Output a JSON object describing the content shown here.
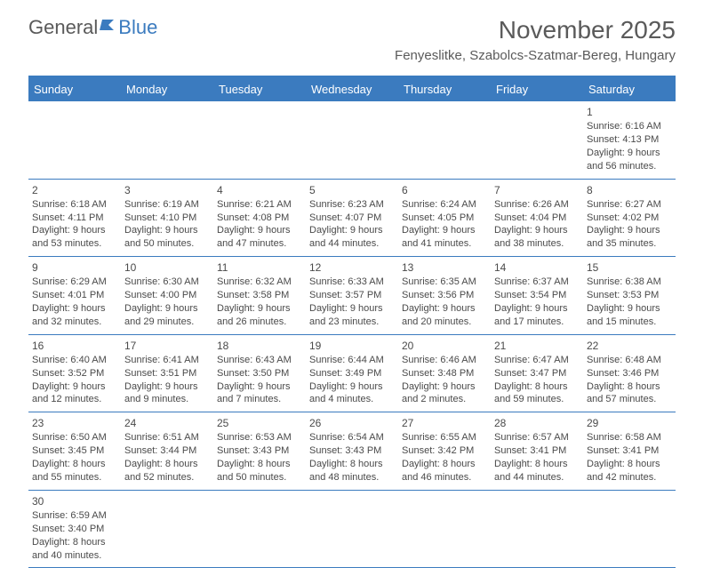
{
  "logo": {
    "text1": "General",
    "text2": "Blue"
  },
  "title": "November 2025",
  "location": "Fenyeslitke, Szabolcs-Szatmar-Bereg, Hungary",
  "colors": {
    "header_bg": "#3b7bbf",
    "header_text": "#ffffff",
    "body_text": "#4a4a4a",
    "title_text": "#5a5a5a",
    "border": "#3b7bbf",
    "background": "#ffffff"
  },
  "day_names": [
    "Sunday",
    "Monday",
    "Tuesday",
    "Wednesday",
    "Thursday",
    "Friday",
    "Saturday"
  ],
  "weeks": [
    [
      null,
      null,
      null,
      null,
      null,
      null,
      {
        "n": "1",
        "sr": "Sunrise: 6:16 AM",
        "ss": "Sunset: 4:13 PM",
        "d1": "Daylight: 9 hours",
        "d2": "and 56 minutes."
      }
    ],
    [
      {
        "n": "2",
        "sr": "Sunrise: 6:18 AM",
        "ss": "Sunset: 4:11 PM",
        "d1": "Daylight: 9 hours",
        "d2": "and 53 minutes."
      },
      {
        "n": "3",
        "sr": "Sunrise: 6:19 AM",
        "ss": "Sunset: 4:10 PM",
        "d1": "Daylight: 9 hours",
        "d2": "and 50 minutes."
      },
      {
        "n": "4",
        "sr": "Sunrise: 6:21 AM",
        "ss": "Sunset: 4:08 PM",
        "d1": "Daylight: 9 hours",
        "d2": "and 47 minutes."
      },
      {
        "n": "5",
        "sr": "Sunrise: 6:23 AM",
        "ss": "Sunset: 4:07 PM",
        "d1": "Daylight: 9 hours",
        "d2": "and 44 minutes."
      },
      {
        "n": "6",
        "sr": "Sunrise: 6:24 AM",
        "ss": "Sunset: 4:05 PM",
        "d1": "Daylight: 9 hours",
        "d2": "and 41 minutes."
      },
      {
        "n": "7",
        "sr": "Sunrise: 6:26 AM",
        "ss": "Sunset: 4:04 PM",
        "d1": "Daylight: 9 hours",
        "d2": "and 38 minutes."
      },
      {
        "n": "8",
        "sr": "Sunrise: 6:27 AM",
        "ss": "Sunset: 4:02 PM",
        "d1": "Daylight: 9 hours",
        "d2": "and 35 minutes."
      }
    ],
    [
      {
        "n": "9",
        "sr": "Sunrise: 6:29 AM",
        "ss": "Sunset: 4:01 PM",
        "d1": "Daylight: 9 hours",
        "d2": "and 32 minutes."
      },
      {
        "n": "10",
        "sr": "Sunrise: 6:30 AM",
        "ss": "Sunset: 4:00 PM",
        "d1": "Daylight: 9 hours",
        "d2": "and 29 minutes."
      },
      {
        "n": "11",
        "sr": "Sunrise: 6:32 AM",
        "ss": "Sunset: 3:58 PM",
        "d1": "Daylight: 9 hours",
        "d2": "and 26 minutes."
      },
      {
        "n": "12",
        "sr": "Sunrise: 6:33 AM",
        "ss": "Sunset: 3:57 PM",
        "d1": "Daylight: 9 hours",
        "d2": "and 23 minutes."
      },
      {
        "n": "13",
        "sr": "Sunrise: 6:35 AM",
        "ss": "Sunset: 3:56 PM",
        "d1": "Daylight: 9 hours",
        "d2": "and 20 minutes."
      },
      {
        "n": "14",
        "sr": "Sunrise: 6:37 AM",
        "ss": "Sunset: 3:54 PM",
        "d1": "Daylight: 9 hours",
        "d2": "and 17 minutes."
      },
      {
        "n": "15",
        "sr": "Sunrise: 6:38 AM",
        "ss": "Sunset: 3:53 PM",
        "d1": "Daylight: 9 hours",
        "d2": "and 15 minutes."
      }
    ],
    [
      {
        "n": "16",
        "sr": "Sunrise: 6:40 AM",
        "ss": "Sunset: 3:52 PM",
        "d1": "Daylight: 9 hours",
        "d2": "and 12 minutes."
      },
      {
        "n": "17",
        "sr": "Sunrise: 6:41 AM",
        "ss": "Sunset: 3:51 PM",
        "d1": "Daylight: 9 hours",
        "d2": "and 9 minutes."
      },
      {
        "n": "18",
        "sr": "Sunrise: 6:43 AM",
        "ss": "Sunset: 3:50 PM",
        "d1": "Daylight: 9 hours",
        "d2": "and 7 minutes."
      },
      {
        "n": "19",
        "sr": "Sunrise: 6:44 AM",
        "ss": "Sunset: 3:49 PM",
        "d1": "Daylight: 9 hours",
        "d2": "and 4 minutes."
      },
      {
        "n": "20",
        "sr": "Sunrise: 6:46 AM",
        "ss": "Sunset: 3:48 PM",
        "d1": "Daylight: 9 hours",
        "d2": "and 2 minutes."
      },
      {
        "n": "21",
        "sr": "Sunrise: 6:47 AM",
        "ss": "Sunset: 3:47 PM",
        "d1": "Daylight: 8 hours",
        "d2": "and 59 minutes."
      },
      {
        "n": "22",
        "sr": "Sunrise: 6:48 AM",
        "ss": "Sunset: 3:46 PM",
        "d1": "Daylight: 8 hours",
        "d2": "and 57 minutes."
      }
    ],
    [
      {
        "n": "23",
        "sr": "Sunrise: 6:50 AM",
        "ss": "Sunset: 3:45 PM",
        "d1": "Daylight: 8 hours",
        "d2": "and 55 minutes."
      },
      {
        "n": "24",
        "sr": "Sunrise: 6:51 AM",
        "ss": "Sunset: 3:44 PM",
        "d1": "Daylight: 8 hours",
        "d2": "and 52 minutes."
      },
      {
        "n": "25",
        "sr": "Sunrise: 6:53 AM",
        "ss": "Sunset: 3:43 PM",
        "d1": "Daylight: 8 hours",
        "d2": "and 50 minutes."
      },
      {
        "n": "26",
        "sr": "Sunrise: 6:54 AM",
        "ss": "Sunset: 3:43 PM",
        "d1": "Daylight: 8 hours",
        "d2": "and 48 minutes."
      },
      {
        "n": "27",
        "sr": "Sunrise: 6:55 AM",
        "ss": "Sunset: 3:42 PM",
        "d1": "Daylight: 8 hours",
        "d2": "and 46 minutes."
      },
      {
        "n": "28",
        "sr": "Sunrise: 6:57 AM",
        "ss": "Sunset: 3:41 PM",
        "d1": "Daylight: 8 hours",
        "d2": "and 44 minutes."
      },
      {
        "n": "29",
        "sr": "Sunrise: 6:58 AM",
        "ss": "Sunset: 3:41 PM",
        "d1": "Daylight: 8 hours",
        "d2": "and 42 minutes."
      }
    ],
    [
      {
        "n": "30",
        "sr": "Sunrise: 6:59 AM",
        "ss": "Sunset: 3:40 PM",
        "d1": "Daylight: 8 hours",
        "d2": "and 40 minutes."
      },
      null,
      null,
      null,
      null,
      null,
      null
    ]
  ]
}
